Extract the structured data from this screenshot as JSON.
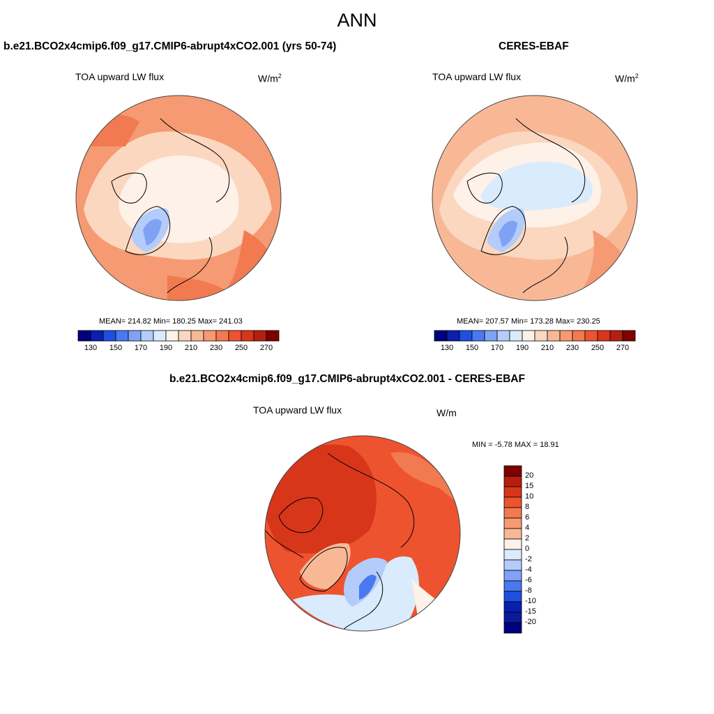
{
  "main_title": "ANN",
  "panels": [
    {
      "title": "b.e21.BCO2x4cmip6.f09_g17.CMIP6-abrupt4xCO2.001 (yrs 50-74)",
      "variable": "TOA upward LW flux",
      "units": "W/m",
      "units_exp": "2",
      "stats": "MEAN= 214.82  Min= 180.25  Max= 241.03"
    },
    {
      "title": "CERES-EBAF",
      "variable": "TOA upward LW flux",
      "units": "W/m",
      "units_exp": "2",
      "stats": "MEAN= 207.57  Min= 173.28  Max= 230.25"
    },
    {
      "title": "b.e21.BCO2x4cmip6.f09_g17.CMIP6-abrupt4xCO2.001 - CERES-EBAF",
      "variable": "TOA upward LW flux",
      "units": "W/m",
      "units_sep": "/",
      "stats": "MIN =  -5.78 MAX =  18.91"
    }
  ],
  "horizontal_colorbar": {
    "labels": [
      "130",
      "150",
      "170",
      "190",
      "210",
      "230",
      "250",
      "270"
    ],
    "colors": [
      "#00007f",
      "#0a1fb0",
      "#1f4fe0",
      "#4a78f0",
      "#7fa2f5",
      "#b3ccfa",
      "#d9ebfc",
      "#fdf1e8",
      "#fbd7c0",
      "#f8b896",
      "#f59a72",
      "#f27a50",
      "#ee5330",
      "#d8361a",
      "#b51f10",
      "#7f0000"
    ]
  },
  "vertical_colorbar": {
    "labels": [
      "20",
      "15",
      "10",
      "8",
      "6",
      "4",
      "2",
      "0",
      "-2",
      "-4",
      "-6",
      "-8",
      "-10",
      "-15",
      "-20"
    ],
    "colors": [
      "#7f0000",
      "#b51f10",
      "#d8361a",
      "#ee5330",
      "#f27a50",
      "#f59a72",
      "#f8b896",
      "#fdf1e8",
      "#d9ebfc",
      "#b3ccfa",
      "#7fa2f5",
      "#4a78f0",
      "#1f4fe0",
      "#0a1fb0",
      "#0a1a9a",
      "#00007f"
    ]
  }
}
